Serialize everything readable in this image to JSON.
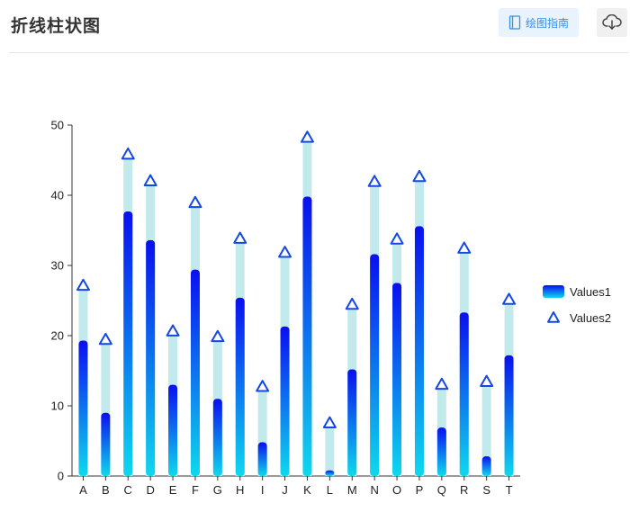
{
  "header": {
    "title": "折线柱状图",
    "guide_label": "绘图指南",
    "guide_icon": "book-icon",
    "download_icon": "cloud-download-icon"
  },
  "chart_data": {
    "type": "bar",
    "categories": [
      "A",
      "B",
      "C",
      "D",
      "E",
      "F",
      "G",
      "H",
      "I",
      "J",
      "K",
      "L",
      "M",
      "N",
      "O",
      "P",
      "Q",
      "R",
      "S",
      "T"
    ],
    "series": [
      {
        "name": "Values1",
        "kind": "bar",
        "values": [
          19.3,
          9.0,
          37.7,
          33.6,
          13.0,
          29.4,
          11.0,
          25.4,
          4.8,
          21.3,
          39.8,
          0.8,
          15.2,
          31.6,
          27.5,
          35.6,
          6.9,
          23.3,
          2.8,
          17.2
        ]
      },
      {
        "name": "Values2",
        "kind": "scatter-triangle",
        "values": [
          26.5,
          18.8,
          45.2,
          41.4,
          20.0,
          38.3,
          19.2,
          33.2,
          12.1,
          31.2,
          47.6,
          6.9,
          23.8,
          41.3,
          33.1,
          42.0,
          12.4,
          31.8,
          12.8,
          24.5
        ]
      }
    ],
    "ylim": [
      0,
      50
    ],
    "yticks": [
      0,
      10,
      20,
      30,
      40,
      50
    ],
    "title": "",
    "xlabel": "",
    "ylabel": "",
    "legend_position": "right",
    "colors": {
      "bar_top": "#0a0ff0",
      "bar_bottom": "#0ed8ee",
      "bg_bar": "#c2e9ec",
      "marker": "#1448e6"
    }
  }
}
